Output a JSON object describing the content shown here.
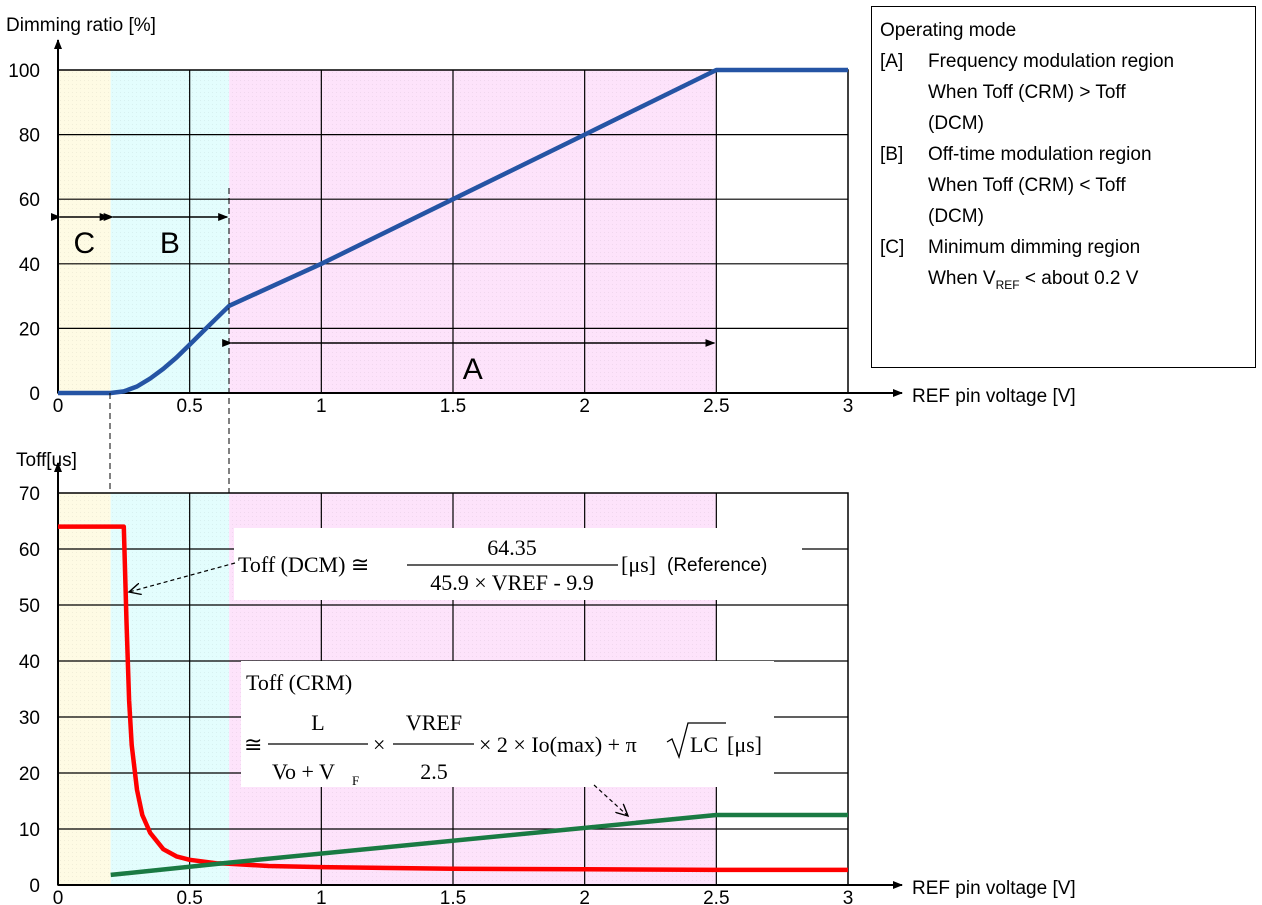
{
  "colors": {
    "region_c": "#fefbe4",
    "region_b": "#e3fdfd",
    "region_a": "#fde3fb",
    "dimming_curve": "#2554a4",
    "toff_dcm_curve": "#ff0000",
    "toff_crm_curve": "#1a7a43"
  },
  "legend": {
    "title": "Operating mode",
    "items": [
      {
        "tag": "[A]",
        "name": "Frequency modulation region",
        "cond1": "When Toff (CRM) > Toff",
        "cond2": "(DCM)"
      },
      {
        "tag": "[B]",
        "name": "Off-time modulation region",
        "cond1": "When Toff (CRM) < Toff",
        "cond2": "(DCM)"
      },
      {
        "tag": "[C]",
        "name": "Minimum dimming region",
        "cond_prefix": "When V",
        "cond_sub": "REF",
        "cond_suffix": " < about 0.2 V"
      }
    ]
  },
  "chart_data": [
    {
      "type": "line",
      "ylabel": "Dimming ratio [%]",
      "xlabel": "REF pin voltage [V]",
      "x_ticks": [
        "0",
        "0.5",
        "1",
        "1.5",
        "2",
        "2.5",
        "3"
      ],
      "y_ticks": [
        "0",
        "20",
        "40",
        "60",
        "80",
        "100"
      ],
      "xlim": [
        0,
        3
      ],
      "ylim": [
        0,
        100
      ],
      "grid": true,
      "regions": [
        {
          "label": "C",
          "x": [
            0,
            0.2
          ]
        },
        {
          "label": "B",
          "x": [
            0.2,
            0.65
          ]
        },
        {
          "label": "A",
          "x": [
            0.65,
            2.5
          ]
        }
      ],
      "series": [
        {
          "x": [
            0,
            0.2,
            0.25,
            0.3,
            0.35,
            0.4,
            0.45,
            0.5,
            0.55,
            0.6,
            0.65,
            1.0,
            1.5,
            2.0,
            2.5,
            3.0
          ],
          "y": [
            0,
            0,
            0.5,
            2,
            4.5,
            7.5,
            11,
            15,
            19,
            23,
            27,
            40,
            60,
            80,
            100,
            100
          ]
        }
      ]
    },
    {
      "type": "line",
      "ylabel": "Toff[us]",
      "xlabel": "REF pin voltage [V]",
      "x_ticks": [
        "0",
        "0.5",
        "1",
        "1.5",
        "2",
        "2.5",
        "3"
      ],
      "y_ticks": [
        "0",
        "10",
        "20",
        "30",
        "40",
        "50",
        "60",
        "70"
      ],
      "xlim": [
        0,
        3
      ],
      "ylim": [
        0,
        70
      ],
      "grid": true,
      "series": [
        {
          "x": [
            0,
            0.25,
            0.26,
            0.27,
            0.28,
            0.3,
            0.32,
            0.35,
            0.4,
            0.45,
            0.5,
            0.6,
            0.65,
            0.8,
            1.0,
            1.5,
            2.0,
            2.5,
            3.0
          ],
          "y": [
            64,
            64,
            47,
            33,
            25,
            17,
            12.5,
            9.3,
            6.4,
            5.1,
            4.5,
            3.9,
            3.8,
            3.4,
            3.2,
            2.9,
            2.8,
            2.7,
            2.7
          ]
        },
        {
          "x": [
            0.2,
            0.65,
            2.5,
            3.0
          ],
          "y": [
            1.8,
            4,
            12.5,
            12.5
          ]
        }
      ],
      "annotations": {
        "dcm": {
          "lhs": "Toff (DCM) ≅",
          "num": "64.35",
          "den": "45.9 × VREF - 9.9",
          "unit": "[μs]",
          "note": "(Reference)"
        },
        "crm": {
          "line1": "Toff (CRM)",
          "approx": "≅",
          "f1_num": "L",
          "f1_den_a": "Vo + V",
          "f1_den_sub": "F",
          "times1": "×",
          "f2_num": "VREF",
          "f2_den": "2.5",
          "rest": "× 2 × Io(max) + π",
          "sqrt": "LC",
          "unit": "[μs]"
        }
      }
    }
  ]
}
